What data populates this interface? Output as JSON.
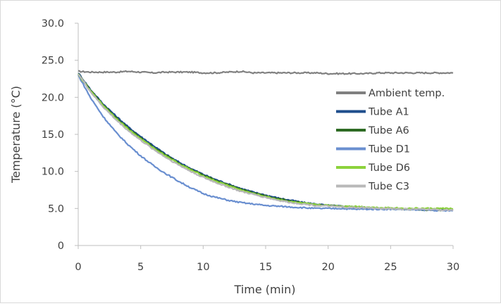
{
  "chart_data": {
    "type": "line",
    "title": "",
    "xlabel": "Time (min)",
    "ylabel": "Temperature (°C)",
    "xlim": [
      0,
      30
    ],
    "ylim": [
      0,
      30
    ],
    "x_ticks": [
      "0",
      "5",
      "10",
      "15",
      "20",
      "25",
      "30"
    ],
    "y_ticks": [
      "0",
      "5.0",
      "10.0",
      "15.0",
      "20.0",
      "25.0",
      "30.0"
    ],
    "grid": false,
    "legend_position": "right",
    "x": [
      0,
      1,
      2,
      3,
      4,
      5,
      6,
      7,
      8,
      9,
      10,
      11,
      12,
      13,
      14,
      15,
      16,
      17,
      18,
      19,
      20,
      21,
      22,
      23,
      24,
      25,
      26,
      27,
      28,
      29,
      30
    ],
    "series": [
      {
        "name": "Ambient temp.",
        "color": "#808080",
        "values": [
          23.5,
          23.4,
          23.4,
          23.4,
          23.5,
          23.4,
          23.3,
          23.4,
          23.4,
          23.4,
          23.3,
          23.3,
          23.4,
          23.5,
          23.3,
          23.3,
          23.3,
          23.3,
          23.3,
          23.3,
          23.2,
          23.2,
          23.2,
          23.2,
          23.3,
          23.3,
          23.3,
          23.3,
          23.3,
          23.3,
          23.3
        ]
      },
      {
        "name": "Tube A1",
        "color": "#1f4e8c",
        "values": [
          23.3,
          21.0,
          19.1,
          17.5,
          16.0,
          14.7,
          13.5,
          12.3,
          11.3,
          10.4,
          9.6,
          8.9,
          8.3,
          7.7,
          7.2,
          6.8,
          6.4,
          6.1,
          5.8,
          5.6,
          5.4,
          5.3,
          5.2,
          5.1,
          5.0,
          5.0,
          4.9,
          4.9,
          4.8,
          4.8,
          4.8
        ]
      },
      {
        "name": "Tube A6",
        "color": "#2e6b24",
        "values": [
          23.2,
          20.9,
          19.0,
          17.3,
          15.8,
          14.5,
          13.3,
          12.2,
          11.2,
          10.3,
          9.5,
          8.8,
          8.2,
          7.6,
          7.1,
          6.7,
          6.3,
          6.0,
          5.7,
          5.5,
          5.4,
          5.3,
          5.2,
          5.1,
          5.0,
          5.0,
          4.9,
          4.9,
          4.8,
          4.8,
          4.8
        ]
      },
      {
        "name": "Tube D1",
        "color": "#6a8fd0",
        "values": [
          23.0,
          19.9,
          17.4,
          15.3,
          13.6,
          12.1,
          10.8,
          9.7,
          8.7,
          7.8,
          7.0,
          6.5,
          6.1,
          5.8,
          5.6,
          5.4,
          5.3,
          5.2,
          5.1,
          5.0,
          5.0,
          5.0,
          4.9,
          4.9,
          4.9,
          4.9,
          4.9,
          4.8,
          4.8,
          4.7,
          4.7
        ]
      },
      {
        "name": "Tube D6",
        "color": "#8cd23c",
        "values": [
          23.1,
          20.8,
          18.9,
          17.2,
          15.7,
          14.4,
          13.2,
          12.1,
          11.1,
          10.2,
          9.4,
          8.7,
          8.1,
          7.5,
          7.0,
          6.6,
          6.2,
          5.9,
          5.7,
          5.5,
          5.4,
          5.3,
          5.3,
          5.2,
          5.1,
          5.1,
          5.0,
          5.0,
          5.0,
          5.0,
          5.0
        ]
      },
      {
        "name": "Tube C3",
        "color": "#b8b8b8",
        "values": [
          23.2,
          20.7,
          18.7,
          17.0,
          15.5,
          14.2,
          13.0,
          11.9,
          10.9,
          10.0,
          9.2,
          8.5,
          7.9,
          7.3,
          6.9,
          6.5,
          6.1,
          5.8,
          5.6,
          5.4,
          5.3,
          5.2,
          5.1,
          5.1,
          5.0,
          5.0,
          4.9,
          4.9,
          4.9,
          4.8,
          4.8
        ]
      }
    ]
  }
}
